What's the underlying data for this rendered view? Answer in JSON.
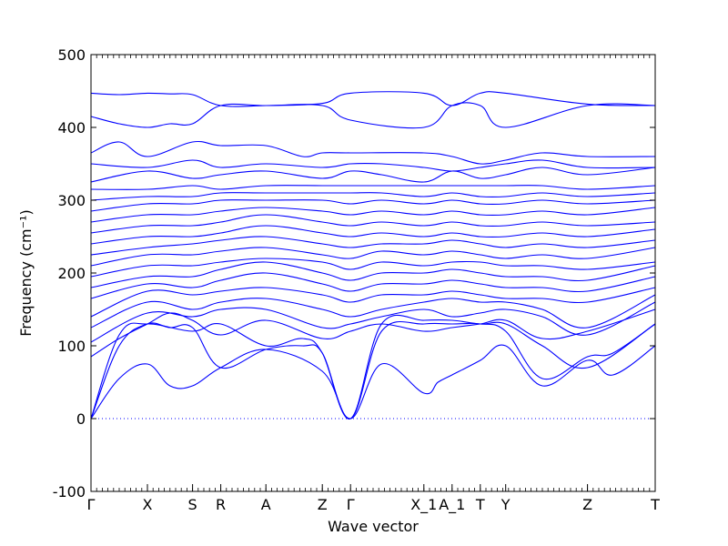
{
  "chart_data": {
    "type": "line",
    "title": "",
    "xlabel": "Wave vector",
    "ylabel": "Frequency (cm⁻¹)",
    "ylim": [
      -100,
      500
    ],
    "yticks": [
      -100,
      0,
      100,
      200,
      300,
      400,
      500
    ],
    "xlim": [
      0,
      20
    ],
    "grid": false,
    "colors": {
      "band": "#0000ff",
      "zero_line": "#0000ff",
      "axes": "#000000"
    },
    "zero_line": {
      "y": 0,
      "style": "dotted"
    },
    "high_symmetry_points": [
      {
        "label": "Γ",
        "x": 0
      },
      {
        "label": "X",
        "x": 2
      },
      {
        "label": "S",
        "x": 3.6
      },
      {
        "label": "R",
        "x": 4.6
      },
      {
        "label": "A",
        "x": 6.2
      },
      {
        "label": "Z",
        "x": 8.2
      },
      {
        "label": "Γ",
        "x": 9.2
      },
      {
        "label": "X_1",
        "x": 11.8
      },
      {
        "label": "A_1",
        "x": 12.8
      },
      {
        "label": "T",
        "x": 13.8
      },
      {
        "label": "Y",
        "x": 14.7
      },
      {
        "label": "Z",
        "x": 17.6
      },
      {
        "label": "T",
        "x": 20
      }
    ],
    "series": [
      {
        "x": [
          0,
          1,
          2,
          2.8,
          3.6,
          4.6,
          6.2,
          8.2,
          9.2,
          10.3,
          11.8,
          12.3,
          12.8,
          13.8,
          14.7,
          16.0,
          17.6,
          18.5,
          20
        ],
        "values": [
          0,
          55,
          75,
          45,
          45,
          70,
          95,
          65,
          0,
          75,
          35,
          50,
          60,
          80,
          100,
          45,
          80,
          60,
          100
        ]
      },
      {
        "x": [
          0,
          1,
          2,
          2.8,
          3.6,
          4.6,
          6.2,
          7.5,
          8.2,
          9.2,
          10.3,
          11.8,
          12.8,
          13.8,
          14.7,
          16.0,
          17.6,
          18.5,
          20
        ],
        "values": [
          0,
          100,
          130,
          125,
          125,
          70,
          95,
          100,
          90,
          0,
          120,
          130,
          130,
          130,
          120,
          55,
          85,
          90,
          130
        ]
      },
      {
        "x": [
          0,
          1,
          2,
          3.6,
          4.6,
          6.2,
          7.5,
          8.2,
          9.2,
          10.3,
          11.8,
          12.8,
          13.8,
          14.7,
          16.0,
          17.6,
          20
        ],
        "values": [
          0,
          115,
          130,
          120,
          130,
          100,
          110,
          90,
          0,
          130,
          135,
          135,
          130,
          130,
          100,
          70,
          130
        ]
      },
      {
        "x": [
          0,
          1,
          2,
          2.8,
          3.6,
          4.6,
          6.2,
          8.2,
          9.2,
          10.3,
          11.8,
          12.8,
          13.8,
          14.7,
          16.0,
          17.6,
          20
        ],
        "values": [
          85,
          110,
          130,
          145,
          135,
          115,
          135,
          110,
          120,
          130,
          120,
          125,
          130,
          135,
          110,
          120,
          150
        ]
      },
      {
        "x": [
          0,
          2,
          3.6,
          4.6,
          6.2,
          8.2,
          9.2,
          10.3,
          11.8,
          12.8,
          13.8,
          14.7,
          16.0,
          17.6,
          20
        ],
        "values": [
          105,
          145,
          140,
          150,
          150,
          125,
          130,
          140,
          150,
          140,
          145,
          150,
          140,
          115,
          160
        ]
      },
      {
        "x": [
          0,
          2,
          3.6,
          4.6,
          6.2,
          8.2,
          9.2,
          10.3,
          11.8,
          12.8,
          13.8,
          14.7,
          16.0,
          17.6,
          20
        ],
        "values": [
          125,
          160,
          150,
          160,
          165,
          150,
          140,
          150,
          160,
          165,
          160,
          160,
          150,
          125,
          170
        ]
      },
      {
        "x": [
          0,
          2,
          3.6,
          4.6,
          6.2,
          8.2,
          9.2,
          10.3,
          11.8,
          12.8,
          13.8,
          14.7,
          16.0,
          17.6,
          20
        ],
        "values": [
          140,
          175,
          170,
          175,
          180,
          170,
          160,
          170,
          170,
          175,
          170,
          165,
          165,
          160,
          180
        ]
      },
      {
        "x": [
          0,
          2,
          3.6,
          4.6,
          6.2,
          8.2,
          9.2,
          10.3,
          11.8,
          12.8,
          13.8,
          14.7,
          16.0,
          17.6,
          20
        ],
        "values": [
          165,
          185,
          180,
          190,
          200,
          185,
          175,
          185,
          185,
          190,
          185,
          180,
          180,
          175,
          195
        ]
      },
      {
        "x": [
          0,
          2,
          3.6,
          4.6,
          6.2,
          8.2,
          9.2,
          10.3,
          11.8,
          12.8,
          13.8,
          14.7,
          16.0,
          17.6,
          20
        ],
        "values": [
          180,
          195,
          195,
          205,
          215,
          200,
          190,
          200,
          200,
          205,
          200,
          195,
          195,
          190,
          210
        ]
      },
      {
        "x": [
          0,
          2,
          3.6,
          4.6,
          6.2,
          8.2,
          9.2,
          10.3,
          11.8,
          12.8,
          13.8,
          14.7,
          16.0,
          17.6,
          20
        ],
        "values": [
          195,
          210,
          210,
          215,
          220,
          215,
          205,
          215,
          210,
          215,
          215,
          210,
          210,
          205,
          215
        ]
      },
      {
        "x": [
          0,
          2,
          3.6,
          4.6,
          6.2,
          8.2,
          9.2,
          10.3,
          11.8,
          12.8,
          13.8,
          14.7,
          16.0,
          17.6,
          20
        ],
        "values": [
          210,
          225,
          225,
          230,
          235,
          225,
          220,
          230,
          225,
          230,
          225,
          220,
          225,
          220,
          235
        ]
      },
      {
        "x": [
          0,
          2,
          3.6,
          4.6,
          6.2,
          8.2,
          9.2,
          10.3,
          11.8,
          12.8,
          13.8,
          14.7,
          16.0,
          17.6,
          20
        ],
        "values": [
          225,
          235,
          240,
          245,
          250,
          240,
          235,
          240,
          240,
          245,
          240,
          235,
          240,
          235,
          245
        ]
      },
      {
        "x": [
          0,
          2,
          3.6,
          4.6,
          6.2,
          8.2,
          9.2,
          10.3,
          11.8,
          12.8,
          13.8,
          14.7,
          16.0,
          17.6,
          20
        ],
        "values": [
          240,
          250,
          250,
          255,
          265,
          255,
          250,
          255,
          250,
          255,
          250,
          250,
          255,
          250,
          260
        ]
      },
      {
        "x": [
          0,
          2,
          3.6,
          4.6,
          6.2,
          8.2,
          9.2,
          10.3,
          11.8,
          12.8,
          13.8,
          14.7,
          16.0,
          17.6,
          20
        ],
        "values": [
          255,
          265,
          265,
          270,
          280,
          270,
          265,
          270,
          265,
          270,
          265,
          265,
          270,
          265,
          270
        ]
      },
      {
        "x": [
          0,
          2,
          3.6,
          4.6,
          6.2,
          8.2,
          9.2,
          10.3,
          11.8,
          12.8,
          13.8,
          14.7,
          16.0,
          17.6,
          20
        ],
        "values": [
          270,
          280,
          280,
          285,
          290,
          285,
          280,
          285,
          280,
          285,
          280,
          280,
          285,
          280,
          290
        ]
      },
      {
        "x": [
          0,
          2,
          3.6,
          4.6,
          6.2,
          8.2,
          9.2,
          10.3,
          11.8,
          12.8,
          13.8,
          14.7,
          16.0,
          17.6,
          20
        ],
        "values": [
          285,
          295,
          295,
          300,
          300,
          300,
          295,
          300,
          295,
          300,
          295,
          295,
          300,
          295,
          300
        ]
      },
      {
        "x": [
          0,
          2,
          3.6,
          4.6,
          6.2,
          8.2,
          9.2,
          10.3,
          11.8,
          12.8,
          13.8,
          14.7,
          16.0,
          17.6,
          20
        ],
        "values": [
          300,
          305,
          305,
          310,
          310,
          310,
          310,
          310,
          305,
          310,
          305,
          305,
          310,
          305,
          310
        ]
      },
      {
        "x": [
          0,
          2,
          3.6,
          4.6,
          6.2,
          8.2,
          9.2,
          10.3,
          11.8,
          12.8,
          13.8,
          14.7,
          16.0,
          17.6,
          20
        ],
        "values": [
          315,
          315,
          320,
          315,
          320,
          320,
          320,
          320,
          320,
          320,
          320,
          320,
          320,
          315,
          320
        ]
      },
      {
        "x": [
          0,
          2,
          3.6,
          4.6,
          6.2,
          8.2,
          9.2,
          10.3,
          11.8,
          12.8,
          13.8,
          14.7,
          16.0,
          17.6,
          20
        ],
        "values": [
          325,
          340,
          330,
          335,
          340,
          330,
          340,
          335,
          325,
          340,
          330,
          335,
          345,
          335,
          345
        ]
      },
      {
        "x": [
          0,
          2,
          3.6,
          4.6,
          6.2,
          8.2,
          9.2,
          10.3,
          11.8,
          12.8,
          13.8,
          14.7,
          16.0,
          17.6,
          20
        ],
        "values": [
          350,
          345,
          355,
          345,
          350,
          345,
          350,
          350,
          345,
          340,
          345,
          350,
          355,
          345,
          345
        ]
      },
      {
        "x": [
          0,
          1,
          2,
          3.6,
          4.6,
          6.2,
          7.5,
          8.2,
          9.2,
          11.8,
          12.8,
          13.8,
          14.7,
          16.0,
          17.6,
          20
        ],
        "values": [
          365,
          380,
          360,
          380,
          375,
          375,
          360,
          365,
          365,
          365,
          360,
          350,
          355,
          365,
          360,
          360
        ]
      },
      {
        "x": [
          0,
          1,
          2,
          2.8,
          3.6,
          4.6,
          6.2,
          8.2,
          9.2,
          11.8,
          12.8,
          13.8,
          14.7,
          17.6,
          20
        ],
        "values": [
          415,
          405,
          400,
          405,
          405,
          430,
          430,
          430,
          410,
          400,
          430,
          430,
          400,
          430,
          430
        ]
      },
      {
        "x": [
          0,
          1,
          2,
          2.8,
          3.6,
          4.6,
          6.2,
          8.2,
          9.2,
          11.8,
          12.8,
          13.8,
          14.7,
          17.6,
          20
        ],
        "values": [
          447,
          445,
          447,
          446,
          445,
          430,
          430,
          433,
          447,
          447,
          430,
          447,
          447,
          432,
          430
        ]
      }
    ]
  }
}
